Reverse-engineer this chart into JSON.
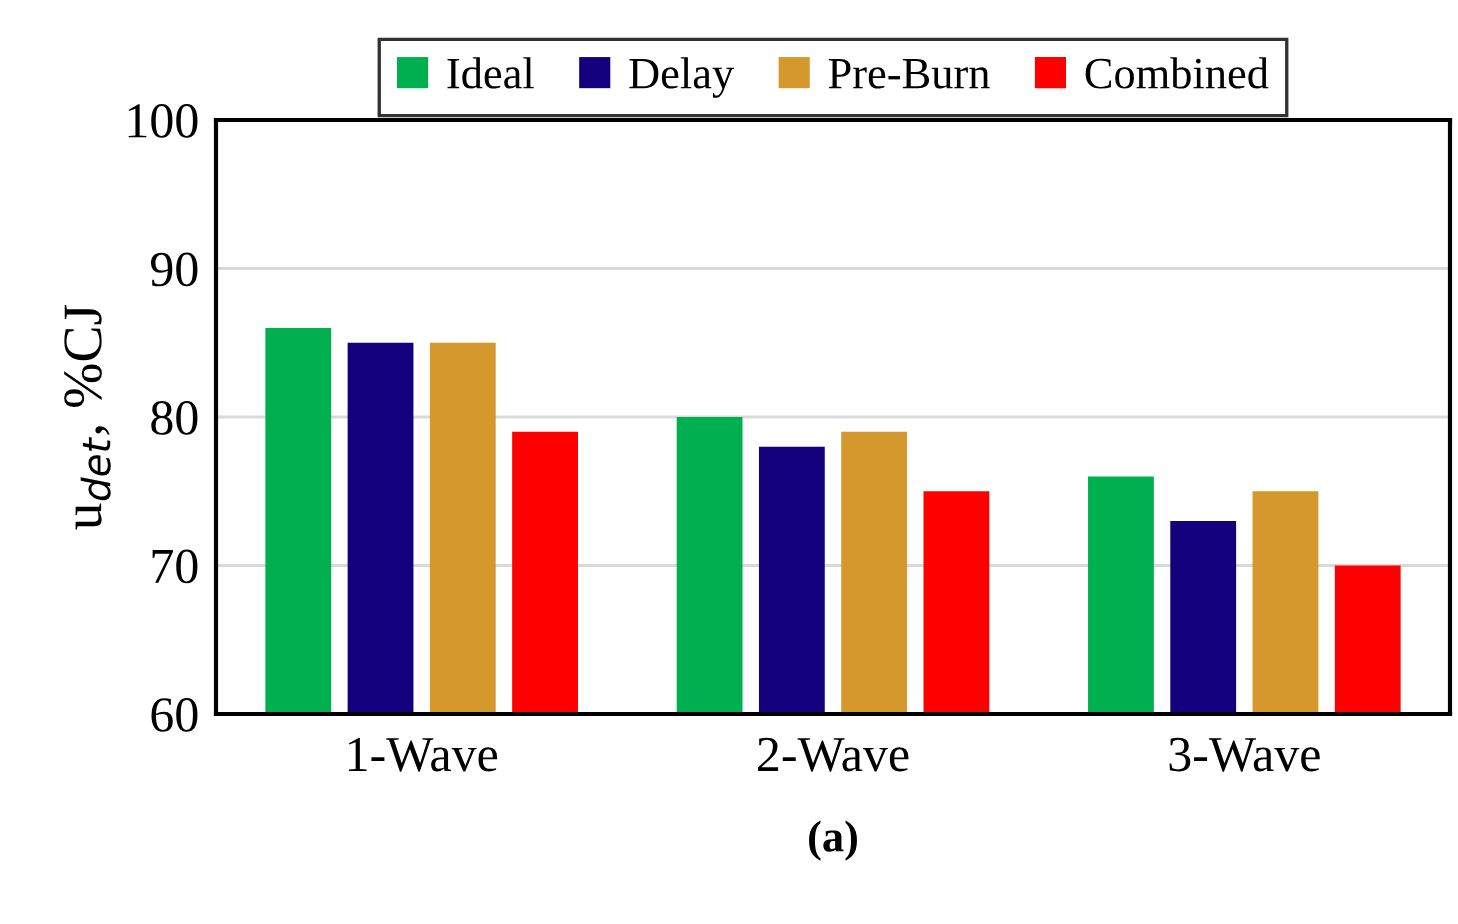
{
  "chart_data": {
    "type": "bar",
    "xlabel": "(a)",
    "ylabel": "u$_{det}$, %CJ",
    "categories": [
      "1-Wave",
      "2-Wave",
      "3-Wave"
    ],
    "series": [
      {
        "name": "Ideal",
        "color": "#00b050",
        "values": [
          86,
          80,
          76
        ]
      },
      {
        "name": "Delay",
        "color": "#13007c",
        "values": [
          85,
          78,
          73
        ]
      },
      {
        "name": "Pre-Burn",
        "color": "#d4982c",
        "values": [
          85,
          79,
          75
        ]
      },
      {
        "name": "Combined",
        "color": "#ff0000",
        "values": [
          79,
          75,
          70
        ]
      }
    ],
    "ylim": [
      60,
      100
    ],
    "yticks": [
      60,
      70,
      80,
      90,
      100
    ],
    "grid": "y",
    "legend": "top"
  }
}
